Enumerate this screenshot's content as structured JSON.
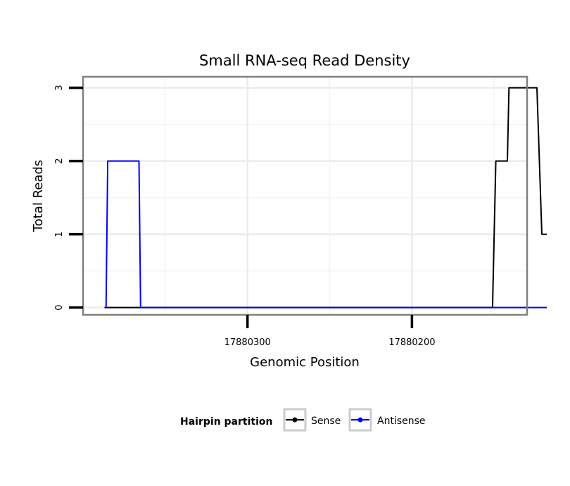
{
  "chart_data": {
    "type": "line",
    "title": "Small RNA-seq Read Density",
    "xlabel": "Genomic Position",
    "ylabel": "Total Reads",
    "x_reversed": true,
    "xlim": [
      17880400,
      17880130
    ],
    "ylim": [
      -0.1,
      3.15
    ],
    "x_ticks": [
      17880300,
      17880200
    ],
    "x_tick_labels": [
      "17880300",
      "17880200"
    ],
    "y_ticks": [
      0,
      1,
      2,
      3
    ],
    "y_tick_labels": [
      "0",
      "1",
      "2",
      "3"
    ],
    "grid": true,
    "legend_placement": "bottom",
    "legend_title": "Hairpin partition",
    "series": [
      {
        "name": "Sense",
        "color": "#000000",
        "x": [
          17880387,
          17880151,
          17880149,
          17880142,
          17880141,
          17880124,
          17880121,
          17880118
        ],
        "values": [
          0,
          0,
          2,
          2,
          3,
          3,
          1,
          1
        ]
      },
      {
        "name": "Antisense",
        "color": "#0000ff",
        "x": [
          17880386,
          17880385,
          17880366,
          17880365,
          17880118
        ],
        "values": [
          0,
          2,
          2,
          0,
          0
        ]
      }
    ]
  }
}
